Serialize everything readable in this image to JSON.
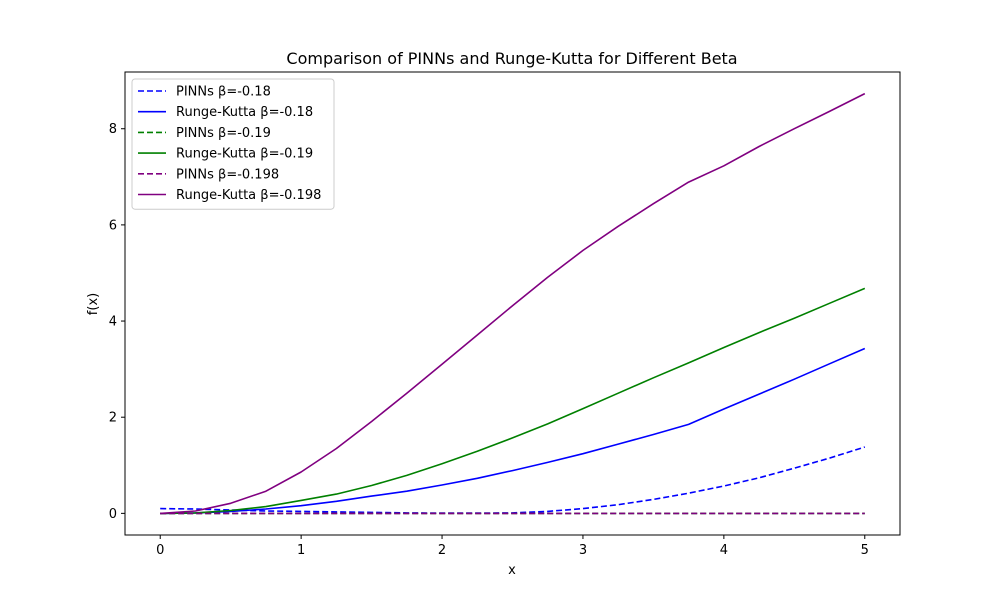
{
  "chart_data": {
    "type": "line",
    "title": "Comparison of PINNs and Runge-Kutta for Different Beta",
    "xlabel": "x",
    "ylabel": "f(x)",
    "xlim": [
      -0.25,
      5.25
    ],
    "ylim": [
      -0.45,
      9.18
    ],
    "xticks": [
      0,
      1,
      2,
      3,
      4,
      5
    ],
    "yticks": [
      0,
      2,
      4,
      6,
      8
    ],
    "grid": false,
    "legend_position": "upper-left",
    "x": [
      0,
      0.25,
      0.5,
      0.75,
      1,
      1.25,
      1.5,
      1.75,
      2,
      2.25,
      2.5,
      2.75,
      3,
      3.25,
      3.5,
      3.75,
      4,
      4.25,
      4.5,
      4.75,
      5
    ],
    "series": [
      {
        "name": "PINNs β=-0.18",
        "style": "dashed",
        "color": "#0000ff",
        "values": [
          0.1,
          0.09,
          0.07,
          0.05,
          0.04,
          0.03,
          0.02,
          0.01,
          0.005,
          0.005,
          0.01,
          0.04,
          0.1,
          0.18,
          0.29,
          0.42,
          0.57,
          0.74,
          0.94,
          1.15,
          1.38
        ]
      },
      {
        "name": "Runge-Kutta β=-0.18",
        "style": "solid",
        "color": "#0000ff",
        "values": [
          0,
          0.01,
          0.04,
          0.09,
          0.16,
          0.25,
          0.36,
          0.46,
          0.59,
          0.73,
          0.89,
          1.06,
          1.24,
          1.44,
          1.64,
          1.85,
          2.17,
          2.48,
          2.79,
          3.11,
          3.43
        ]
      },
      {
        "name": "PINNs β=-0.19",
        "style": "dashed",
        "color": "#008000",
        "values": [
          0,
          0,
          0,
          0,
          0,
          0,
          0,
          0,
          0,
          0,
          0,
          0,
          0,
          0,
          0,
          0,
          0,
          0,
          0,
          0,
          0
        ]
      },
      {
        "name": "Runge-Kutta β=-0.19",
        "style": "solid",
        "color": "#008000",
        "values": [
          0,
          0.01,
          0.06,
          0.14,
          0.27,
          0.4,
          0.58,
          0.79,
          1.03,
          1.29,
          1.57,
          1.86,
          2.18,
          2.5,
          2.82,
          3.13,
          3.45,
          3.76,
          4.06,
          4.37,
          4.68
        ]
      },
      {
        "name": "PINNs β=-0.198",
        "style": "dashed",
        "color": "#800080",
        "values": [
          0,
          0,
          0,
          0,
          0,
          0,
          0,
          0,
          0,
          0,
          0,
          0,
          0,
          0,
          0,
          0,
          0,
          0,
          0,
          0,
          0
        ]
      },
      {
        "name": "Runge-Kutta β=-0.198",
        "style": "solid",
        "color": "#800080",
        "values": [
          0,
          0.05,
          0.21,
          0.46,
          0.86,
          1.35,
          1.91,
          2.5,
          3.1,
          3.71,
          4.32,
          4.91,
          5.47,
          5.97,
          6.44,
          6.89,
          7.23,
          7.63,
          8.0,
          8.36,
          8.73
        ]
      }
    ]
  }
}
